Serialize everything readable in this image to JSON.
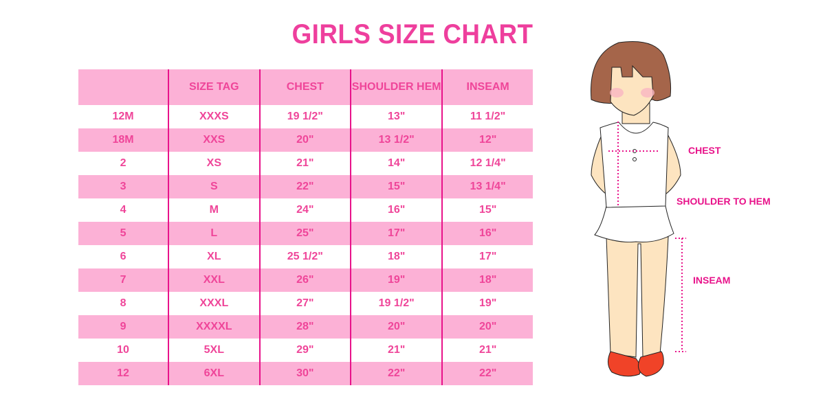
{
  "title": "GIRLS SIZE CHART",
  "table": {
    "headers": [
      "",
      "SIZE TAG",
      "CHEST",
      "SHOULDER HEM",
      "INSEAM"
    ],
    "rows": [
      [
        "12M",
        "XXXS",
        "19 1/2\"",
        "13\"",
        "11 1/2\""
      ],
      [
        "18M",
        "XXS",
        "20\"",
        "13 1/2\"",
        "12\""
      ],
      [
        "2",
        "XS",
        "21\"",
        "14\"",
        "12 1/4\""
      ],
      [
        "3",
        "S",
        "22\"",
        "15\"",
        "13 1/4\""
      ],
      [
        "4",
        "M",
        "24\"",
        "16\"",
        "15\""
      ],
      [
        "5",
        "L",
        "25\"",
        "17\"",
        "16\""
      ],
      [
        "6",
        "XL",
        "25 1/2\"",
        "18\"",
        "17\""
      ],
      [
        "7",
        "XXL",
        "26\"",
        "19\"",
        "18\""
      ],
      [
        "8",
        "XXXL",
        "27\"",
        "19 1/2\"",
        "19\""
      ],
      [
        "9",
        "XXXXL",
        "28\"",
        "20\"",
        "20\""
      ],
      [
        "10",
        "5XL",
        "29\"",
        "21\"",
        "21\""
      ],
      [
        "12",
        "6XL",
        "30\"",
        "22\"",
        "22\""
      ]
    ]
  },
  "diagram": {
    "labels": {
      "chest": "CHEST",
      "shoulder": "SHOULDER TO HEM",
      "inseam": "INSEAM"
    }
  },
  "colors": {
    "accent": "#ee3f9d",
    "row_pink": "#fcb1d6",
    "divider": "#e8128a"
  }
}
